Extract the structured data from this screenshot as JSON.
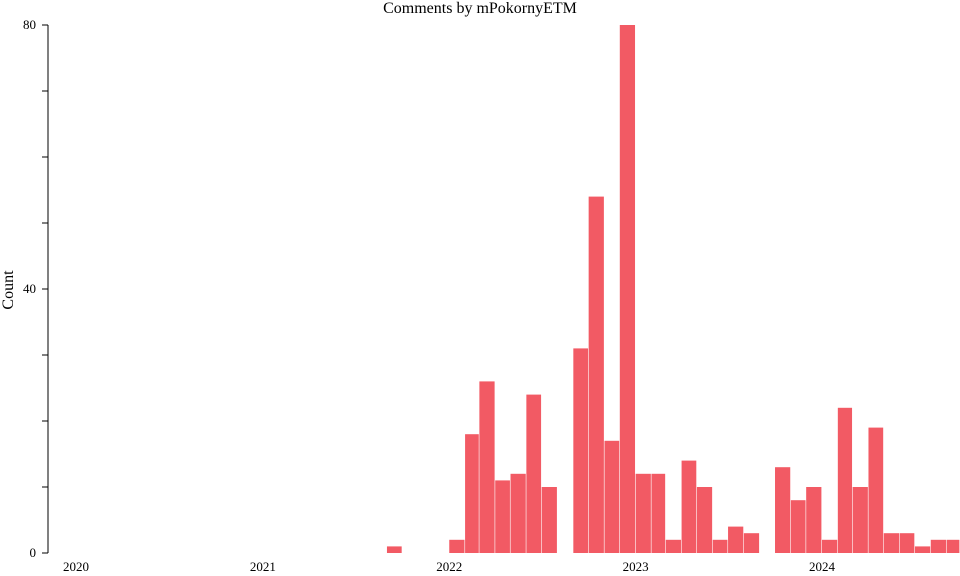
{
  "chart_data": {
    "type": "bar",
    "title": "Comments by mPokornyETM",
    "xlabel": "",
    "ylabel": "Count",
    "ylim": [
      0,
      80
    ],
    "xlim": [
      "2020-01-01",
      "2024-09-30"
    ],
    "grid": false,
    "legend": "none",
    "bar_color": "#f25a64",
    "y_ticks": [
      {
        "value": 0,
        "label": "0"
      },
      {
        "value": 10,
        "label": ""
      },
      {
        "value": 20,
        "label": ""
      },
      {
        "value": 30,
        "label": ""
      },
      {
        "value": 40,
        "label": "40"
      },
      {
        "value": 50,
        "label": ""
      },
      {
        "value": 60,
        "label": ""
      },
      {
        "value": 70,
        "label": ""
      },
      {
        "value": 80,
        "label": "80"
      }
    ],
    "x_ticks": [
      {
        "date": "2020-01-01",
        "label": "2020"
      },
      {
        "date": "2021-01-01",
        "label": "2021"
      },
      {
        "date": "2022-01-01",
        "label": "2022"
      },
      {
        "date": "2023-01-01",
        "label": "2023"
      },
      {
        "date": "2024-01-01",
        "label": "2024"
      }
    ],
    "bars": [
      {
        "month": "2021-09",
        "value": 1
      },
      {
        "month": "2022-01",
        "value": 2
      },
      {
        "month": "2022-02",
        "value": 18
      },
      {
        "month": "2022-03",
        "value": 26
      },
      {
        "month": "2022-04",
        "value": 11
      },
      {
        "month": "2022-05",
        "value": 12
      },
      {
        "month": "2022-06",
        "value": 24
      },
      {
        "month": "2022-07",
        "value": 10
      },
      {
        "month": "2022-09",
        "value": 31
      },
      {
        "month": "2022-10",
        "value": 54
      },
      {
        "month": "2022-11",
        "value": 17
      },
      {
        "month": "2022-12",
        "value": 80
      },
      {
        "month": "2023-01",
        "value": 12
      },
      {
        "month": "2023-02",
        "value": 12
      },
      {
        "month": "2023-03",
        "value": 2
      },
      {
        "month": "2023-04",
        "value": 14
      },
      {
        "month": "2023-05",
        "value": 10
      },
      {
        "month": "2023-06",
        "value": 2
      },
      {
        "month": "2023-07",
        "value": 4
      },
      {
        "month": "2023-08",
        "value": 3
      },
      {
        "month": "2023-10",
        "value": 13
      },
      {
        "month": "2023-11",
        "value": 8
      },
      {
        "month": "2023-12",
        "value": 10
      },
      {
        "month": "2024-01",
        "value": 2
      },
      {
        "month": "2024-02",
        "value": 22
      },
      {
        "month": "2024-03",
        "value": 10
      },
      {
        "month": "2024-04",
        "value": 19
      },
      {
        "month": "2024-05",
        "value": 3
      },
      {
        "month": "2024-06",
        "value": 3
      },
      {
        "month": "2024-07",
        "value": 1
      },
      {
        "month": "2024-08",
        "value": 2
      },
      {
        "month": "2024-09",
        "value": 2
      }
    ]
  }
}
